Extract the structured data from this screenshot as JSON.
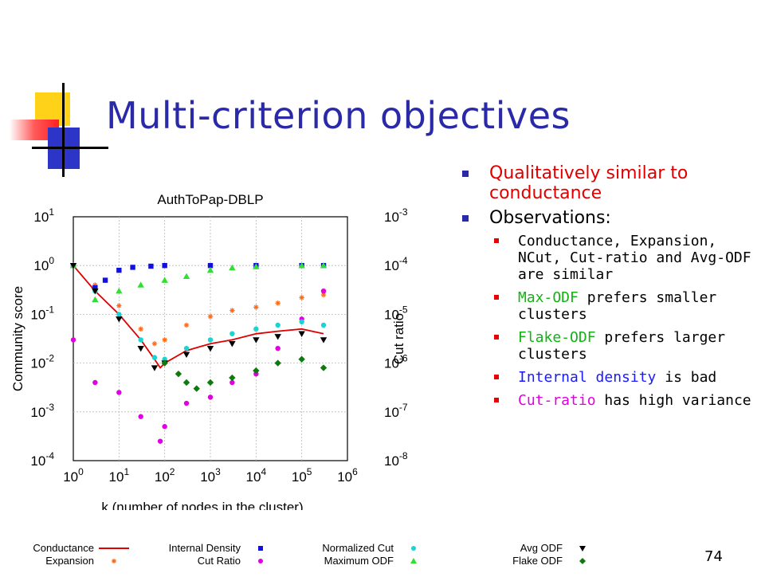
{
  "slide": {
    "title": "Multi-criterion objectives",
    "page_number": "74",
    "bullets": [
      {
        "text": "Qualitatively similar to conductance",
        "color": "#e00000"
      },
      {
        "text": "Observations:",
        "color": "#000000"
      }
    ],
    "sub_bullets": [
      {
        "parts": [
          {
            "text": "Conductance, Expansion, NCut, Cut-ratio and Avg-ODF are similar",
            "color": "#000000"
          }
        ]
      },
      {
        "parts": [
          {
            "text": "Max-ODF",
            "color": "#12b312"
          },
          {
            "text": " prefers smaller clusters",
            "color": "#000000"
          }
        ]
      },
      {
        "parts": [
          {
            "text": "Flake-ODF",
            "color": "#12b312"
          },
          {
            "text": " prefers larger clusters",
            "color": "#000000"
          }
        ]
      },
      {
        "parts": [
          {
            "text": "Internal density",
            "color": "#1a1aff"
          },
          {
            "text": " is bad",
            "color": "#000000"
          }
        ]
      },
      {
        "parts": [
          {
            "text": "Cut-ratio",
            "color": "#e000e0"
          },
          {
            "text": " has high variance",
            "color": "#000000"
          }
        ]
      }
    ]
  },
  "chart_data": {
    "type": "scatter",
    "title": "AuthToPap-DBLP",
    "xlabel": "k (number of nodes in the cluster)",
    "ylabel": "Community score",
    "y2label": "Cut ratio",
    "x_scale": "log",
    "y_scale": "log",
    "xlim": [
      1,
      1000000
    ],
    "ylim": [
      0.0001,
      10
    ],
    "y2lim": [
      1e-08,
      0.001
    ],
    "x_ticks": [
      "10^0",
      "10^1",
      "10^2",
      "10^3",
      "10^4",
      "10^5",
      "10^6"
    ],
    "y_ticks": [
      "10^-4",
      "10^-3",
      "10^-2",
      "10^-1",
      "10^0",
      "10^1"
    ],
    "y2_ticks": [
      "10^-8",
      "10^-7",
      "10^-6",
      "10^-5",
      "10^-4",
      "10^-3"
    ],
    "grid": true,
    "series": [
      {
        "name": "Conductance",
        "marker": "line",
        "color": "#e00000",
        "x": [
          1,
          3,
          10,
          30,
          60,
          80,
          100,
          300,
          1000,
          3000,
          10000,
          30000,
          100000,
          300000
        ],
        "y": [
          1,
          0.3,
          0.1,
          0.03,
          0.012,
          0.008,
          0.01,
          0.018,
          0.025,
          0.03,
          0.04,
          0.045,
          0.05,
          0.04
        ]
      },
      {
        "name": "Expansion",
        "marker": "star",
        "color": "#ff6a1a",
        "x": [
          1,
          3,
          10,
          30,
          60,
          100,
          300,
          1000,
          3000,
          10000,
          30000,
          100000,
          300000
        ],
        "y": [
          1,
          0.4,
          0.15,
          0.05,
          0.025,
          0.03,
          0.06,
          0.09,
          0.12,
          0.14,
          0.17,
          0.22,
          0.25
        ]
      },
      {
        "name": "Internal Density",
        "marker": "square",
        "color": "#1010e0",
        "x": [
          1,
          3,
          5,
          10,
          20,
          50,
          100,
          1000,
          10000,
          100000,
          300000
        ],
        "y": [
          1,
          0.35,
          0.5,
          0.8,
          0.92,
          0.97,
          1,
          1,
          1,
          1,
          1
        ]
      },
      {
        "name": "Cut Ratio",
        "marker": "circle",
        "color": "#e000e0",
        "x": [
          1,
          3,
          10,
          30,
          80,
          100,
          300,
          1000,
          3000,
          10000,
          30000,
          100000,
          300000
        ],
        "y": [
          0.03,
          0.004,
          0.0025,
          0.0008,
          0.00025,
          0.0005,
          0.0015,
          0.002,
          0.004,
          0.006,
          0.02,
          0.08,
          0.3
        ]
      },
      {
        "name": "Normalized Cut",
        "marker": "circle",
        "color": "#1ad4d4",
        "x": [
          1,
          3,
          10,
          30,
          60,
          100,
          300,
          1000,
          3000,
          10000,
          30000,
          100000,
          300000
        ],
        "y": [
          1,
          0.3,
          0.1,
          0.03,
          0.013,
          0.012,
          0.02,
          0.03,
          0.04,
          0.05,
          0.06,
          0.07,
          0.06
        ]
      },
      {
        "name": "Maximum ODF",
        "marker": "triangle",
        "color": "#30e030",
        "x": [
          1,
          3,
          10,
          30,
          100,
          300,
          1000,
          3000,
          10000,
          100000,
          300000
        ],
        "y": [
          1,
          0.2,
          0.3,
          0.4,
          0.5,
          0.6,
          0.8,
          0.9,
          0.95,
          1,
          1
        ]
      },
      {
        "name": "Avg ODF",
        "marker": "triangle-down",
        "color": "#000000",
        "x": [
          1,
          3,
          10,
          30,
          60,
          100,
          300,
          1000,
          3000,
          10000,
          30000,
          100000,
          300000
        ],
        "y": [
          1,
          0.3,
          0.08,
          0.02,
          0.008,
          0.01,
          0.015,
          0.02,
          0.025,
          0.03,
          0.035,
          0.04,
          0.03
        ]
      },
      {
        "name": "Flake ODF",
        "marker": "diamond",
        "color": "#0e7a0e",
        "x": [
          100,
          200,
          300,
          500,
          1000,
          3000,
          10000,
          30000,
          100000,
          300000
        ],
        "y": [
          0.01,
          0.006,
          0.004,
          0.003,
          0.004,
          0.005,
          0.007,
          0.01,
          0.012,
          0.008
        ]
      }
    ]
  },
  "legend": {
    "entries": [
      {
        "name": "Conductance",
        "marker": "line",
        "color": "#e00000",
        "col": 0,
        "row": 0
      },
      {
        "name": "Expansion",
        "marker": "star",
        "color": "#ff6a1a",
        "col": 0,
        "row": 1
      },
      {
        "name": "Internal Density",
        "marker": "square",
        "color": "#1010e0",
        "col": 1,
        "row": 0
      },
      {
        "name": "Cut Ratio",
        "marker": "circle",
        "color": "#e000e0",
        "col": 1,
        "row": 1
      },
      {
        "name": "Normalized Cut",
        "marker": "circle",
        "color": "#1ad4d4",
        "col": 2,
        "row": 0
      },
      {
        "name": "Maximum ODF",
        "marker": "triangle",
        "color": "#30e030",
        "col": 2,
        "row": 1
      },
      {
        "name": "Avg ODF",
        "marker": "triangle-down",
        "color": "#000000",
        "col": 3,
        "row": 0
      },
      {
        "name": "Flake ODF",
        "marker": "diamond",
        "color": "#0e7a0e",
        "col": 3,
        "row": 1
      }
    ]
  }
}
